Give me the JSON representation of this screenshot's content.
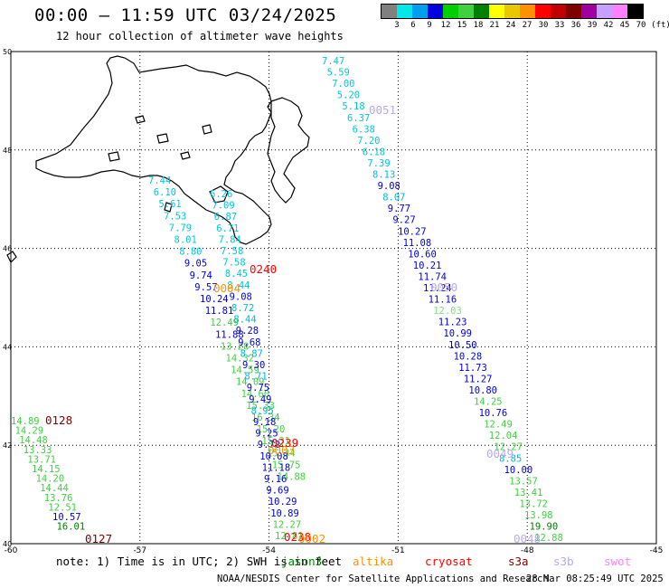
{
  "header": {
    "title": "00:00 – 11:59 UTC 03/24/2025",
    "subtitle": "12 hour collection of altimeter wave heights"
  },
  "legend": {
    "unit": "(ft)",
    "colors": [
      "#808080",
      "#00e8e8",
      "#00a0f0",
      "#0000e0",
      "#00d000",
      "#40d040",
      "#008000",
      "#ffff00",
      "#e8c800",
      "#ff9000",
      "#ff0000",
      "#c00000",
      "#800000",
      "#a000a0",
      "#c8a0ff",
      "#ff80ff",
      "#000000"
    ],
    "labels": [
      "3",
      "6",
      "9",
      "12",
      "15",
      "18",
      "21",
      "24",
      "27",
      "30",
      "33",
      "36",
      "39",
      "42",
      "45",
      "70"
    ]
  },
  "axes": {
    "lat_ticks": [
      "50",
      "48",
      "46",
      "44",
      "42",
      "40"
    ],
    "lon_ticks": [
      "-60",
      "-57",
      "-54",
      "-51",
      "-48",
      "-45"
    ]
  },
  "map": {
    "lon_range": [
      -60,
      -45
    ],
    "lat_range": [
      40,
      50
    ],
    "tracks": [
      {
        "id": "0051",
        "color": "#b8a8f0",
        "lon": -50.7,
        "lat": 48.9,
        "values": [
          [
            "7.47",
            "#00c8d8"
          ],
          [
            "5.59",
            "#00c8d8"
          ],
          [
            "7.00",
            "#00c8d8"
          ],
          [
            "5.20",
            "#00c8d8"
          ],
          [
            "5.18",
            "#00c8d8"
          ],
          [
            "6.37",
            "#00c8d8"
          ],
          [
            "6.38",
            "#00c8d8"
          ],
          [
            "7.20",
            "#00c8d8"
          ],
          [
            "6.18",
            "#00c8d8"
          ],
          [
            "7.39",
            "#00c8d8"
          ],
          [
            "8.13",
            "#00b8e0"
          ],
          [
            "9.08",
            "#0000e0"
          ],
          [
            "8.07",
            "#00b8e0"
          ],
          [
            "9.77",
            "#0000e0"
          ],
          [
            "9.27",
            "#0000e0"
          ],
          [
            "10.27",
            "#0000e0"
          ],
          [
            "11.08",
            "#0000e0"
          ],
          [
            "10.60",
            "#0000e0"
          ],
          [
            "10.21",
            "#0000e0"
          ],
          [
            "11.74",
            "#0000e0"
          ],
          [
            "11.24",
            "#0000e0"
          ],
          [
            "11.16",
            "#0000e0"
          ],
          [
            "12.03",
            "#80e080"
          ],
          [
            "11.23",
            "#0000e0"
          ],
          [
            "10.99",
            "#0000e0"
          ],
          [
            "10.50",
            "#0000e0"
          ],
          [
            "10.28",
            "#0000e0"
          ],
          [
            "11.73",
            "#0000e0"
          ],
          [
            "11.27",
            "#0000e0"
          ],
          [
            "10.80",
            "#0000e0"
          ],
          [
            "14.25",
            "#40d040"
          ],
          [
            "10.76",
            "#0000e0"
          ],
          [
            "12.49",
            "#40d040"
          ],
          [
            "12.04",
            "#40d040"
          ],
          [
            "12.27",
            "#40d040"
          ],
          [
            "8.85",
            "#00b8e0"
          ],
          [
            "10.00",
            "#0000e0"
          ],
          [
            "13.57",
            "#40d040"
          ],
          [
            "13.41",
            "#40d040"
          ],
          [
            "13.72",
            "#40d040"
          ],
          [
            "13.98",
            "#40d040"
          ],
          [
            "19.90",
            "#008000"
          ],
          [
            "12.88",
            "#40d040"
          ]
        ]
      },
      {
        "id": "0050",
        "color": "#b8a8f0"
      },
      {
        "id": "0049",
        "color": "#b8a8f0"
      },
      {
        "id": "0048",
        "color": "#b8a8f0"
      },
      {
        "id": "0240",
        "color": "#ff0000"
      },
      {
        "id": "0239",
        "color": "#ff0000"
      },
      {
        "id": "0238",
        "color": "#ff0000"
      },
      {
        "id": "0004",
        "color": "#ff9000"
      },
      {
        "id": "0003",
        "color": "#ff9000"
      },
      {
        "id": "0002",
        "color": "#ff9000"
      },
      {
        "id": "0128",
        "color": "#800000"
      },
      {
        "id": "0127",
        "color": "#800000"
      }
    ],
    "track_a": [
      [
        "7.44",
        "#00c8d8"
      ],
      [
        "6.10",
        "#00c8d8"
      ],
      [
        "5.61",
        "#00c8d8"
      ],
      [
        "7.53",
        "#00c8d8"
      ],
      [
        "7.79",
        "#00c8d8"
      ],
      [
        "8.01",
        "#00c8d8"
      ],
      [
        "8.80",
        "#00c8d8"
      ],
      [
        "9.05",
        "#0000e0"
      ],
      [
        "9.74",
        "#0000e0"
      ],
      [
        "9.57",
        "#0000e0"
      ],
      [
        "10.24",
        "#0000e0"
      ],
      [
        "11.81",
        "#0000e0"
      ],
      [
        "12.49",
        "#40d040"
      ],
      [
        "11.88",
        "#0000e0"
      ],
      [
        "13.28",
        "#40d040"
      ],
      [
        "14.32",
        "#40d040"
      ],
      [
        "14.59",
        "#40d040"
      ],
      [
        "14.09",
        "#40d040"
      ],
      [
        "14.60",
        "#40d040"
      ],
      [
        "15.33",
        "#40d040"
      ],
      [
        "16.34",
        "#40d040"
      ],
      [
        "15.20",
        "#40d040"
      ],
      [
        "15.31",
        "#40d040"
      ],
      [
        "15.34",
        "#40d040"
      ],
      [
        "15.75",
        "#40d040"
      ],
      [
        "14.88",
        "#40d040"
      ]
    ],
    "track_b": [
      [
        "6.26",
        "#00c8d8"
      ],
      [
        "7.09",
        "#00c8d8"
      ],
      [
        "6.87",
        "#00c8d8"
      ],
      [
        "6.71",
        "#00c8d8"
      ],
      [
        "7.84",
        "#00c8d8"
      ],
      [
        "7.58",
        "#00c8d8"
      ],
      [
        "7.58",
        "#00c8d8"
      ],
      [
        "8.45",
        "#00c8d8"
      ],
      [
        "8.44",
        "#00c8d8"
      ],
      [
        "9.08",
        "#0000e0"
      ],
      [
        "8.72",
        "#00b8e0"
      ],
      [
        "8.44",
        "#00b8e0"
      ],
      [
        "9.28",
        "#0000e0"
      ],
      [
        "9.68",
        "#0000e0"
      ],
      [
        "8.87",
        "#00b8e0"
      ],
      [
        "9.30",
        "#0000e0"
      ],
      [
        "8.71",
        "#00b8e0"
      ],
      [
        "9.75",
        "#0000e0"
      ],
      [
        "9.49",
        "#0000e0"
      ],
      [
        "8.95",
        "#00b8e0"
      ],
      [
        "9.18",
        "#0000e0"
      ],
      [
        "9.25",
        "#0000e0"
      ],
      [
        "9.72",
        "#0000e0"
      ],
      [
        "10.08",
        "#0000e0"
      ],
      [
        "11.18",
        "#0000e0"
      ],
      [
        "9.16",
        "#0000e0"
      ],
      [
        "9.69",
        "#0000e0"
      ],
      [
        "10.29",
        "#0000e0"
      ],
      [
        "10.89",
        "#0000e0"
      ],
      [
        "12.27",
        "#40d040"
      ],
      [
        "12.81",
        "#40d040"
      ]
    ],
    "track_c": [
      [
        "14.89",
        "#40d040"
      ],
      [
        "14.29",
        "#40d040"
      ],
      [
        "14.48",
        "#40d040"
      ],
      [
        "13.33",
        "#40d040"
      ],
      [
        "13.71",
        "#40d040"
      ],
      [
        "14.15",
        "#40d040"
      ],
      [
        "14.20",
        "#40d040"
      ],
      [
        "14.44",
        "#40d040"
      ],
      [
        "13.76",
        "#40d040"
      ],
      [
        "12.51",
        "#40d040"
      ],
      [
        "10.57",
        "#0000e0"
      ],
      [
        "16.01",
        "#008000"
      ]
    ]
  },
  "footer": {
    "note": "note: 1) Time is in UTC; 2) SWH is in feet",
    "satellites": [
      {
        "name": "jason3",
        "color": "#008000"
      },
      {
        "name": "altika",
        "color": "#ff9000"
      },
      {
        "name": "cryosat",
        "color": "#ff0000"
      },
      {
        "name": "s3a",
        "color": "#800000"
      },
      {
        "name": "s3b",
        "color": "#b8a8f0"
      },
      {
        "name": "swot",
        "color": "#ff80ff"
      }
    ],
    "credit": "NOAA/NESDIS Center for Satellite Applications and Research",
    "generated": "28 Mar 08:25:49 UTC 2025"
  }
}
